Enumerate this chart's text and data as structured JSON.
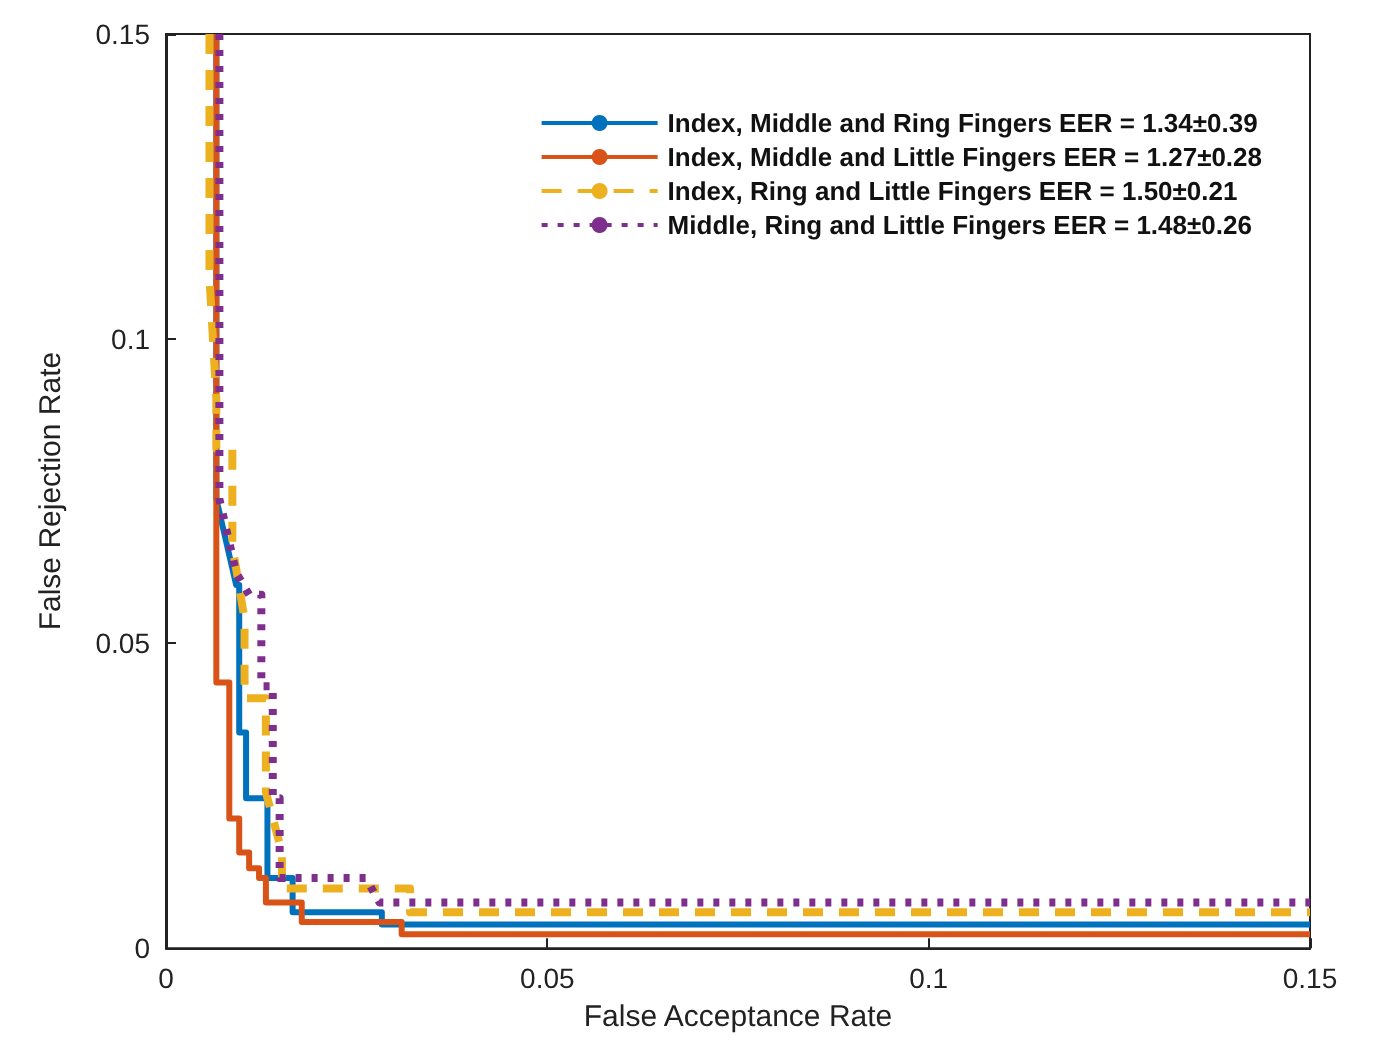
{
  "chart_data": {
    "type": "line",
    "xlabel": "False Acceptance Rate",
    "ylabel": "False Rejection Rate",
    "xlim": [
      0,
      0.15
    ],
    "ylim": [
      0,
      0.15
    ],
    "xticks": [
      0,
      0.05,
      0.1,
      0.15
    ],
    "yticks": [
      0,
      0.05,
      0.1,
      0.15
    ],
    "grid": false,
    "legend": "top right",
    "marker": "none",
    "series": [
      {
        "name": "Index, Middle and Ring Fingers EER = 1.34±0.39",
        "color": "#0072bd",
        "line_style": "solid",
        "x": [
          0.0066,
          0.0066,
          0.0092,
          0.0096,
          0.0096,
          0.0105,
          0.0105,
          0.0133,
          0.0133,
          0.0166,
          0.0166,
          0.0283,
          0.0283,
          0.15
        ],
        "values": [
          0.15,
          0.0737,
          0.0596,
          0.0596,
          0.0354,
          0.0354,
          0.0246,
          0.0246,
          0.0115,
          0.0115,
          0.0059,
          0.0059,
          0.0039,
          0.0039
        ]
      },
      {
        "name": "Index, Middle and Little Fingers EER = 1.27±0.28",
        "color": "#d95319",
        "line_style": "solid",
        "x": [
          0.0066,
          0.0066,
          0.0083,
          0.0083,
          0.0096,
          0.0096,
          0.0109,
          0.0109,
          0.0122,
          0.0122,
          0.0131,
          0.0131,
          0.0178,
          0.0178,
          0.0309,
          0.0309,
          0.15
        ],
        "values": [
          0.15,
          0.0436,
          0.0436,
          0.0213,
          0.0213,
          0.0157,
          0.0157,
          0.0131,
          0.0131,
          0.0115,
          0.0115,
          0.0075,
          0.0075,
          0.0043,
          0.0043,
          0.0023,
          0.0023
        ]
      },
      {
        "name": "Index, Ring and Little Fingers EER = 1.50±0.21",
        "color": "#edb120",
        "line_style": "dashed",
        "x": [
          0.0057,
          0.0057,
          0.0066,
          0.0066,
          0.0087,
          0.0087,
          0.0103,
          0.0103,
          0.0131,
          0.0131,
          0.0152,
          0.0152,
          0.032,
          0.032,
          0.15
        ],
        "values": [
          0.15,
          0.11,
          0.09,
          0.082,
          0.082,
          0.066,
          0.054,
          0.041,
          0.041,
          0.0256,
          0.0157,
          0.0098,
          0.0098,
          0.0059,
          0.0059
        ]
      },
      {
        "name": "Middle, Ring and Little Fingers EER = 1.48±0.26",
        "color": "#7e2f8e",
        "line_style": "dotted",
        "x": [
          0.007,
          0.007,
          0.0092,
          0.0109,
          0.0125,
          0.0125,
          0.014,
          0.014,
          0.0149,
          0.0149,
          0.0262,
          0.028,
          0.15
        ],
        "values": [
          0.15,
          0.0737,
          0.0616,
          0.058,
          0.058,
          0.043,
          0.043,
          0.0246,
          0.0246,
          0.0115,
          0.0115,
          0.0075,
          0.0075
        ]
      }
    ]
  }
}
